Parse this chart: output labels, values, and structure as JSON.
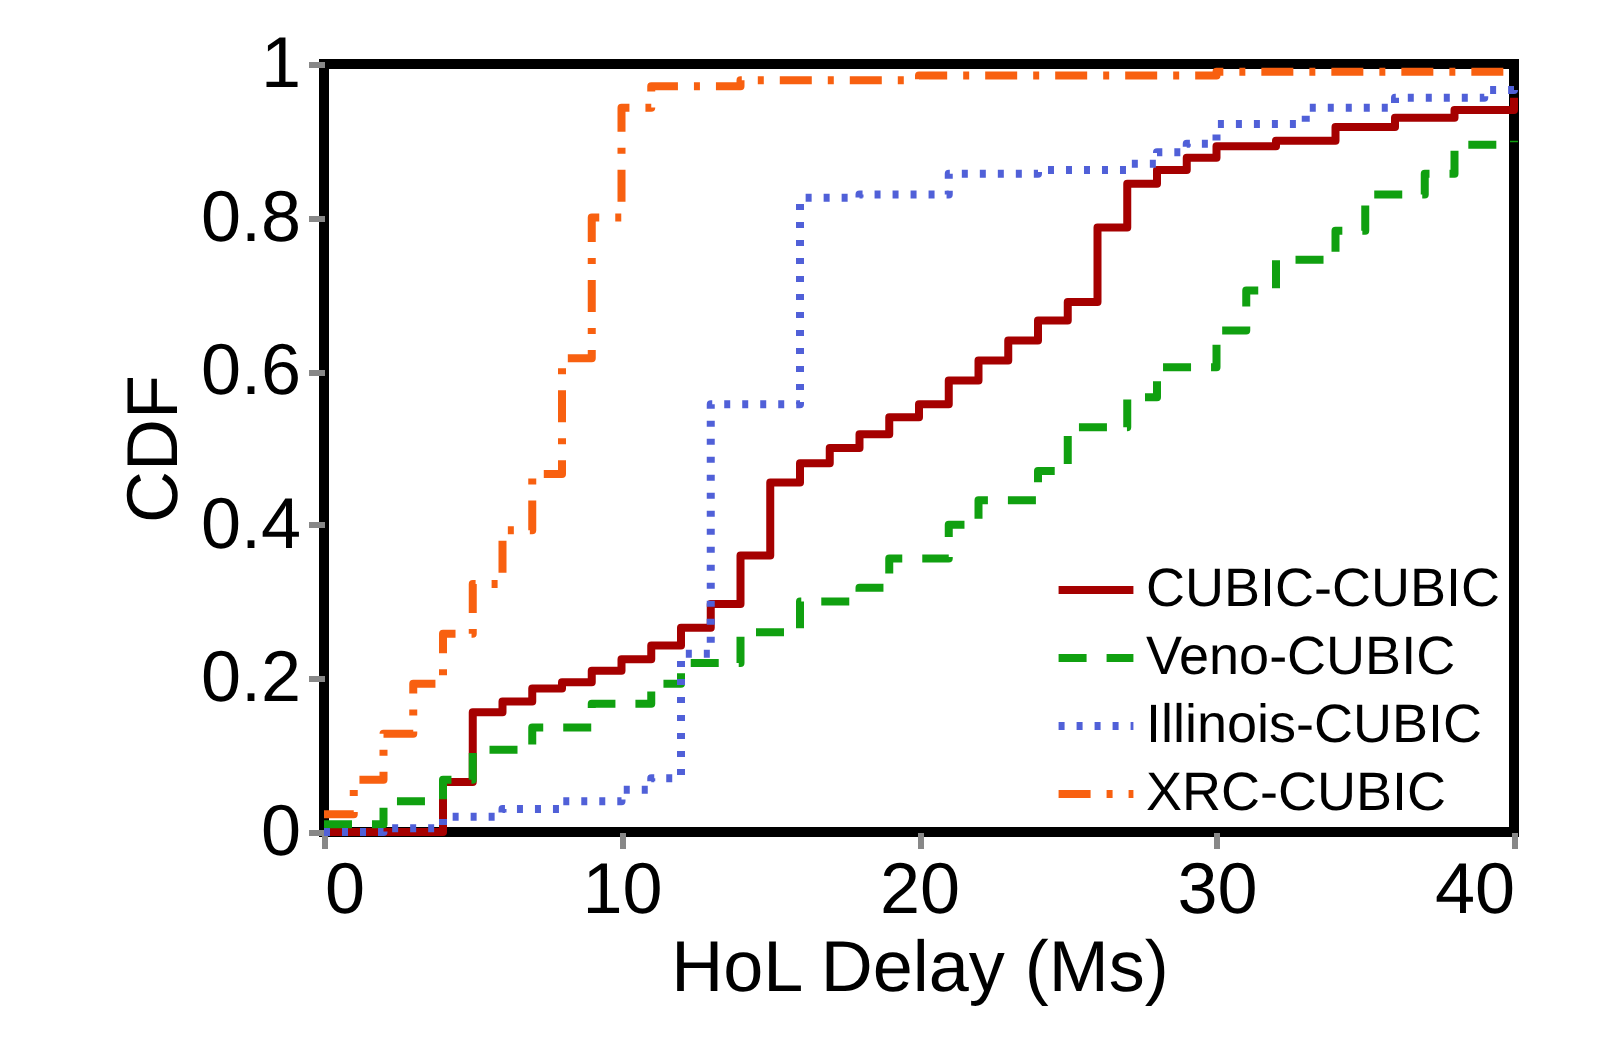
{
  "chart_data": {
    "type": "step",
    "xlabel": "HoL Delay (Ms)",
    "ylabel": "CDF",
    "xlim": [
      0,
      40
    ],
    "xticks": [
      0,
      10,
      20,
      30,
      40
    ],
    "ylim": [
      0,
      1
    ],
    "yticks": [
      0,
      0.2,
      0.4,
      0.6,
      0.8,
      1
    ],
    "grid": false,
    "legend": "bottom right",
    "marker": "none",
    "series": [
      {
        "name": "CUBIC-CUBIC",
        "color": "#a50000",
        "line_style": "solid",
        "x": [
          0,
          4,
          5,
          6,
          7,
          8,
          9,
          10,
          11,
          12,
          13,
          14,
          15,
          16,
          17,
          18,
          19,
          20,
          21,
          22,
          23,
          24,
          25,
          26,
          27,
          28,
          29,
          30,
          32,
          34,
          36,
          38,
          40
        ],
        "values": [
          0,
          0.065,
          0.156,
          0.17,
          0.187,
          0.195,
          0.21,
          0.225,
          0.243,
          0.266,
          0.297,
          0.36,
          0.455,
          0.48,
          0.5,
          0.518,
          0.54,
          0.557,
          0.588,
          0.614,
          0.64,
          0.666,
          0.69,
          0.787,
          0.844,
          0.862,
          0.878,
          0.893,
          0.9,
          0.918,
          0.93,
          0.94,
          0.956
        ]
      },
      {
        "name": "Veno-CUBIC",
        "color": "#10a010",
        "line_style": "dashed",
        "x": [
          0,
          2,
          4,
          5,
          7,
          9,
          11,
          12,
          14,
          16,
          18,
          19,
          21,
          22,
          24,
          25,
          27,
          28,
          30,
          31,
          32,
          34,
          35,
          37,
          38,
          40
        ],
        "values": [
          0.01,
          0.04,
          0.068,
          0.107,
          0.136,
          0.167,
          0.193,
          0.22,
          0.26,
          0.3,
          0.318,
          0.356,
          0.4,
          0.432,
          0.47,
          0.527,
          0.566,
          0.605,
          0.653,
          0.705,
          0.745,
          0.783,
          0.83,
          0.857,
          0.895,
          0.9
        ]
      },
      {
        "name": "Illinois-CUBIC",
        "color": "#5060d8",
        "line_style": "dotted",
        "x": [
          0,
          2,
          4,
          6,
          8,
          10,
          11,
          12,
          13,
          16,
          18,
          21,
          24,
          27,
          28,
          29,
          30,
          33,
          36,
          39,
          40
        ],
        "values": [
          0,
          0.005,
          0.02,
          0.03,
          0.04,
          0.055,
          0.07,
          0.232,
          0.557,
          0.826,
          0.83,
          0.857,
          0.862,
          0.87,
          0.885,
          0.896,
          0.922,
          0.943,
          0.956,
          0.966,
          0.975
        ]
      },
      {
        "name": "XRC-CUBIC",
        "color": "#f86010",
        "line_style": "dashdot",
        "x": [
          0,
          1,
          2,
          3,
          4,
          5,
          6,
          7,
          8,
          9,
          10,
          11,
          14,
          20,
          30,
          40
        ],
        "values": [
          0.023,
          0.068,
          0.128,
          0.193,
          0.258,
          0.323,
          0.393,
          0.466,
          0.617,
          0.8,
          0.943,
          0.971,
          0.979,
          0.985,
          0.99,
          0.995
        ]
      }
    ]
  }
}
